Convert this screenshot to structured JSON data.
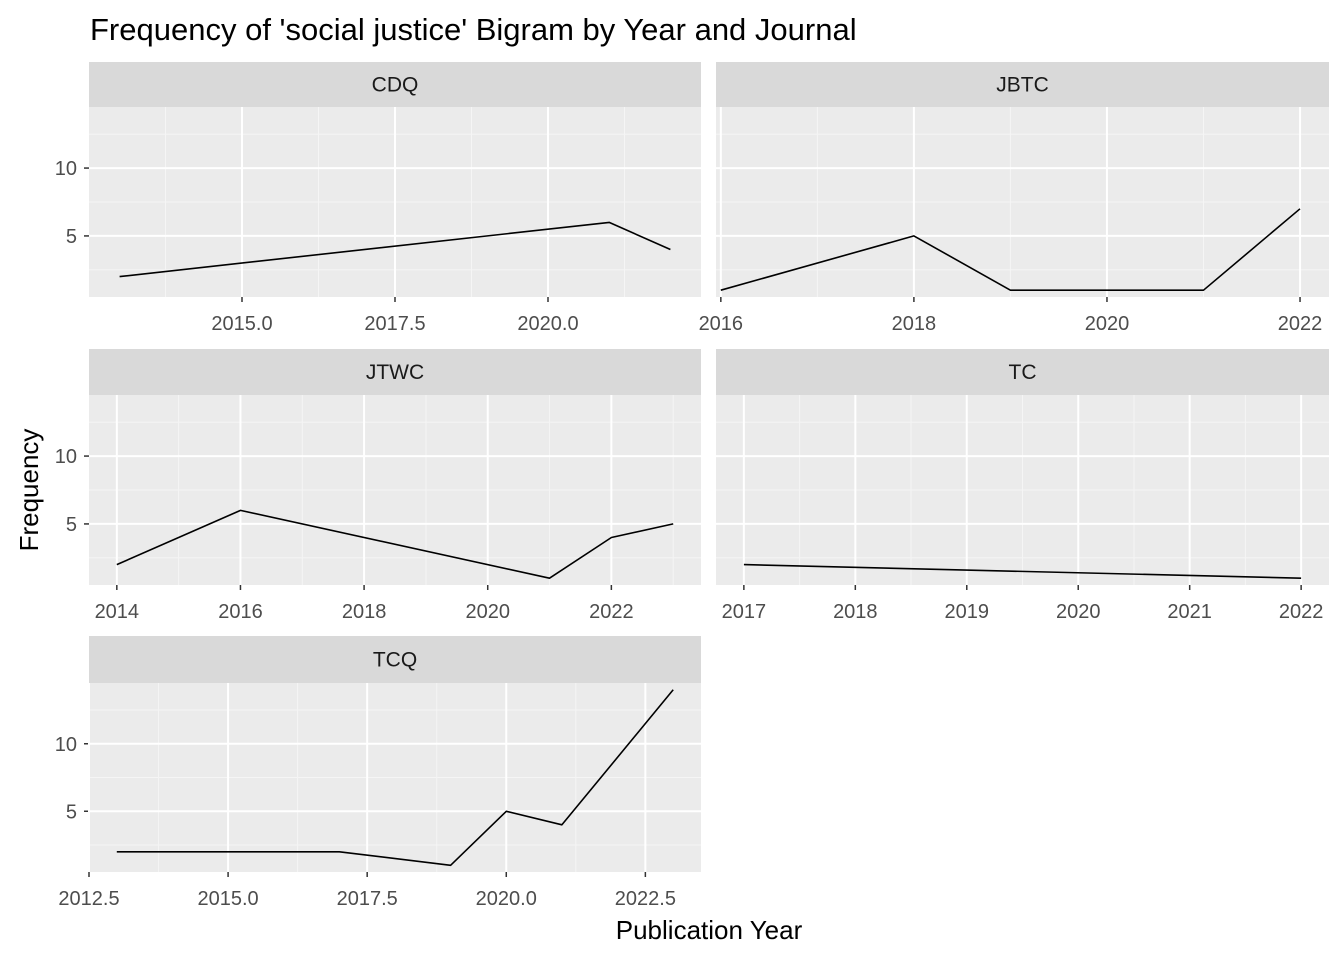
{
  "chart_data": {
    "type": "line",
    "title": "Frequency of 'social justice' Bigram by Year and Journal",
    "xlabel": "Publication Year",
    "ylabel": "Frequency",
    "ylim": [
      0.5,
      14.5
    ],
    "y_ticks": [
      5,
      10
    ],
    "grid": true,
    "facets": [
      {
        "name": "CDQ",
        "xlim": [
          2012.5,
          2022.5
        ],
        "x_ticks": [
          2015.0,
          2017.5,
          2020.0
        ],
        "x_tick_labels": [
          "2015.0",
          "2017.5",
          "2020.0"
        ],
        "x": [
          2013,
          2021,
          2022
        ],
        "y": [
          2,
          6,
          4
        ]
      },
      {
        "name": "JBTC",
        "xlim": [
          2015.95,
          2022.3
        ],
        "x_ticks": [
          2016,
          2018,
          2020,
          2022
        ],
        "x_tick_labels": [
          "2016",
          "2018",
          "2020",
          "2022"
        ],
        "x": [
          2016,
          2018,
          2019,
          2021,
          2022
        ],
        "y": [
          1,
          5,
          1,
          1,
          7
        ]
      },
      {
        "name": "JTWC",
        "xlim": [
          2013.55,
          2023.45
        ],
        "x_ticks": [
          2014,
          2016,
          2018,
          2020,
          2022
        ],
        "x_tick_labels": [
          "2014",
          "2016",
          "2018",
          "2020",
          "2022"
        ],
        "x": [
          2014,
          2016,
          2021,
          2022,
          2023
        ],
        "y": [
          2,
          6,
          1,
          4,
          5
        ]
      },
      {
        "name": "TC",
        "xlim": [
          2016.75,
          2022.25
        ],
        "x_ticks": [
          2017,
          2018,
          2019,
          2020,
          2021,
          2022
        ],
        "x_tick_labels": [
          "2017",
          "2018",
          "2019",
          "2020",
          "2021",
          "2022"
        ],
        "x": [
          2017,
          2022
        ],
        "y": [
          2,
          1
        ]
      },
      {
        "name": "TCQ",
        "xlim": [
          2012.5,
          2023.5
        ],
        "x_ticks": [
          2012.5,
          2015.0,
          2017.5,
          2020.0,
          2022.5
        ],
        "x_tick_labels": [
          "2012.5",
          "2015.0",
          "2017.5",
          "2020.0",
          "2022.5"
        ],
        "x": [
          2013,
          2017,
          2019,
          2020,
          2021,
          2023
        ],
        "y": [
          2,
          2,
          1,
          5,
          4,
          14
        ]
      }
    ]
  },
  "colors": {
    "panel_background": "#ebebeb",
    "strip_background": "#d9d9d9",
    "grid_major": "#ffffff",
    "grid_minor": "#f5f5f5",
    "line": "#000000",
    "tick": "#333333"
  }
}
